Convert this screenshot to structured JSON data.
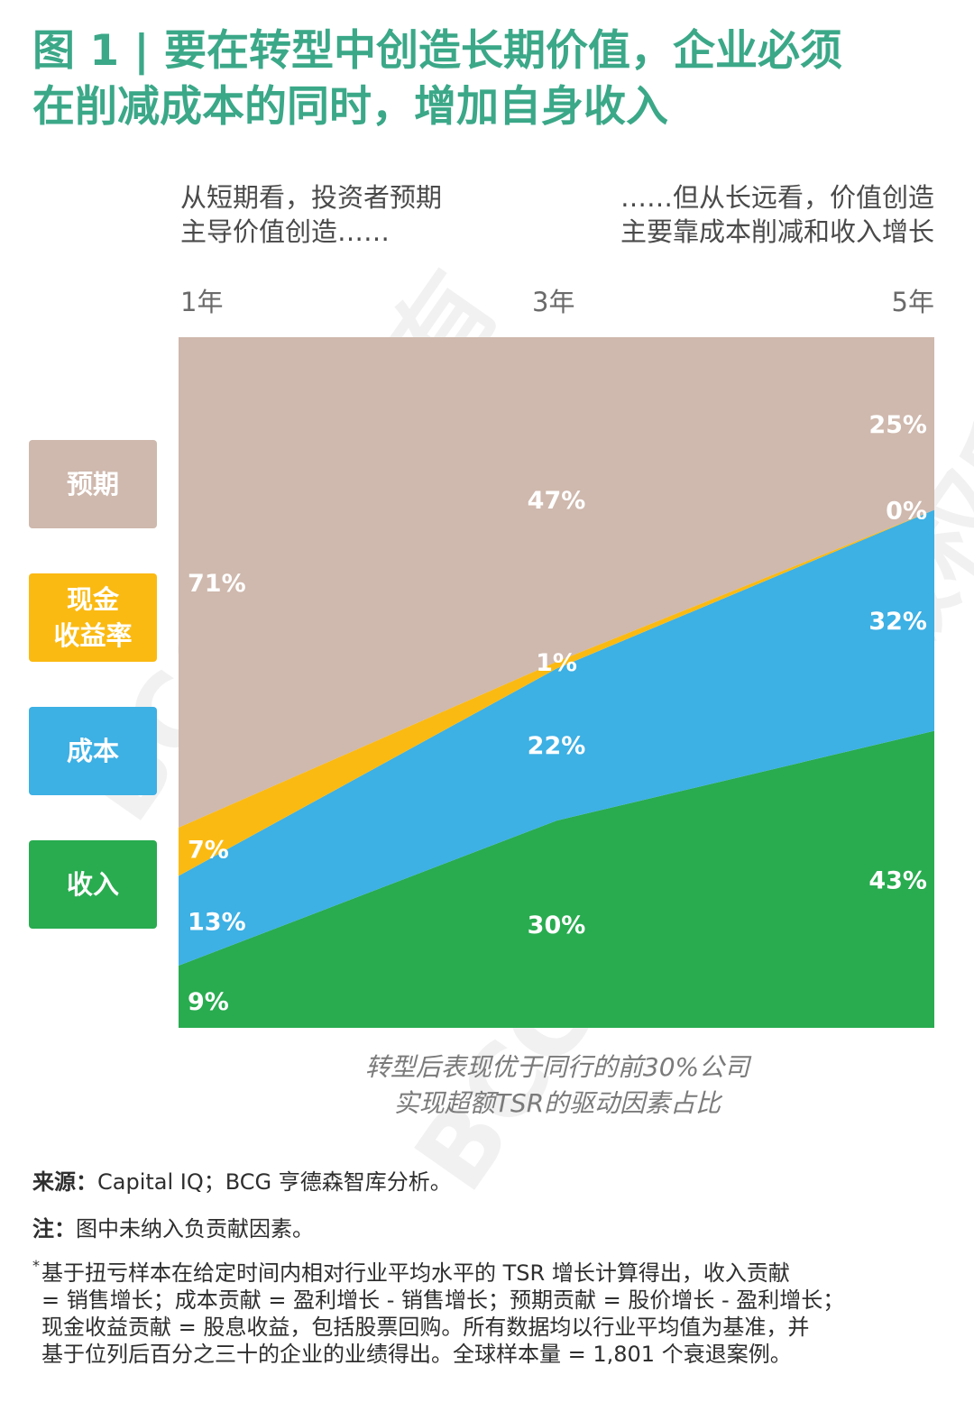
{
  "title_lines": [
    "图 1 | 要在转型中创造长期价值，企业必须",
    "在削减成本的同时，增加自身收入"
  ],
  "annotation_left": [
    "从短期看，投资者预期",
    "主导价值创造……"
  ],
  "annotation_right": [
    "……但从长远看，价值创造",
    "主要靠成本削减和收入增长"
  ],
  "legend": [
    {
      "label_lines": [
        "预期"
      ],
      "color": "#cfb8ad"
    },
    {
      "label_lines": [
        "现金",
        "收益率"
      ],
      "color": "#fbba12"
    },
    {
      "label_lines": [
        "成本"
      ],
      "color": "#3db0e4"
    },
    {
      "label_lines": [
        "收入"
      ],
      "color": "#28ac4f"
    }
  ],
  "caption_lines": [
    "转型后表现优于同行的前30%公司",
    "实现超额TSR的驱动因素占比"
  ],
  "source": {
    "label": "来源：",
    "text": "Capital IQ；BCG 亨德森智库分析。"
  },
  "note": {
    "label": "注：",
    "text": "图中未纳入负贡献因素。"
  },
  "footnote": {
    "star": "*",
    "lines": [
      "基于扭亏样本在给定时间内相对行业平均水平的 TSR 增长计算得出，收入贡献",
      "= 销售增长；成本贡献 = 盈利增长 - 销售增长；预期贡献 = 股价增长 - 盈利增长；",
      "现金收益贡献 = 股息收益，包括股票回购。所有数据均以行业平均值为基准，并",
      "基于位列后百分之三十的企业的业绩得出。全球样本量 = 1,801 个衰退案例。"
    ]
  },
  "watermark": "BCG版权所有",
  "chart_data": {
    "type": "area",
    "stacked": true,
    "x": [
      "1年",
      "3年",
      "5年"
    ],
    "ylim": [
      0,
      100
    ],
    "series": [
      {
        "name": "收入",
        "values": [
          9,
          30,
          43
        ],
        "labels": [
          "9%",
          "30%",
          "43%"
        ],
        "color": "#28ac4f"
      },
      {
        "name": "成本",
        "values": [
          13,
          22,
          32
        ],
        "labels": [
          "13%",
          "22%",
          "32%"
        ],
        "color": "#3db0e4"
      },
      {
        "name": "现金收益率",
        "values": [
          7,
          1,
          0
        ],
        "labels": [
          "7%",
          "1%",
          "0%"
        ],
        "color": "#fbba12"
      },
      {
        "name": "预期",
        "values": [
          71,
          47,
          25
        ],
        "labels": [
          "71%",
          "47%",
          "25%"
        ],
        "color": "#cfb8ad"
      }
    ]
  }
}
